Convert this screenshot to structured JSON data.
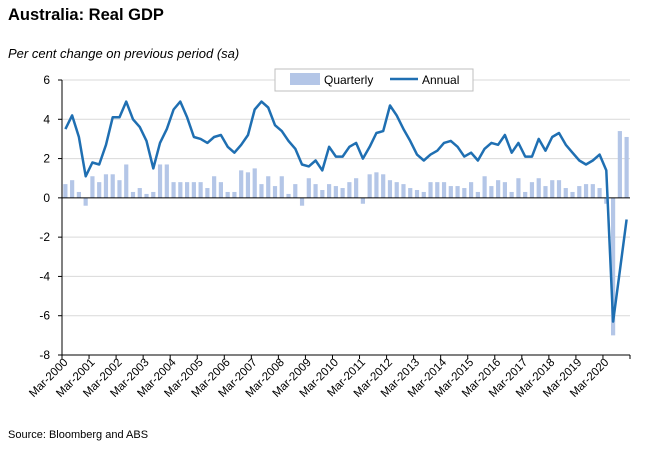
{
  "title": "Australia: Real GDP",
  "subtitle": "Per cent change on previous period (sa)",
  "source": "Source: Bloomberg and ABS",
  "colors": {
    "quarterly": "#b4c6e7",
    "annual": "#1f6fb2",
    "grid": "#d9d9d9",
    "axis": "#000000"
  },
  "chart_data": {
    "type": "bar",
    "title": "Australia: Real GDP",
    "ylabel": "Per cent change on previous period (sa)",
    "xlabel": "",
    "ylim": [
      -8,
      6
    ],
    "yticks": [
      6,
      4,
      2,
      0,
      -2,
      -4,
      -6,
      -8
    ],
    "grid": "horizontal",
    "legend_position": "top",
    "x_start": "Mar-2000",
    "x_frequency": "quarterly",
    "x_tick_labels": [
      "Mar-2000",
      "Mar-2001",
      "Mar-2002",
      "Mar-2003",
      "Mar-2004",
      "Mar-2005",
      "Mar-2006",
      "Mar-2007",
      "Mar-2008",
      "Mar-2009",
      "Mar-2010",
      "Mar-2011",
      "Mar-2012",
      "Mar-2013",
      "Mar-2014",
      "Mar-2015",
      "Mar-2016",
      "Mar-2017",
      "Mar-2018",
      "Mar-2019",
      "Mar-2020"
    ],
    "series": [
      {
        "name": "Quarterly",
        "type": "bar",
        "values": [
          0.7,
          0.9,
          0.3,
          -0.4,
          1.1,
          0.8,
          1.2,
          1.2,
          0.9,
          1.7,
          0.3,
          0.5,
          0.2,
          0.3,
          1.7,
          1.7,
          0.8,
          0.8,
          0.8,
          0.8,
          0.8,
          0.5,
          1.1,
          0.8,
          0.3,
          0.3,
          1.4,
          1.3,
          1.5,
          0.7,
          1.1,
          0.6,
          1.1,
          0.2,
          0.7,
          -0.4,
          1.0,
          0.7,
          0.4,
          0.7,
          0.6,
          0.5,
          0.8,
          1.0,
          -0.3,
          1.2,
          1.3,
          1.2,
          0.9,
          0.8,
          0.7,
          0.5,
          0.4,
          0.3,
          0.8,
          0.8,
          0.8,
          0.6,
          0.6,
          0.5,
          0.8,
          0.3,
          1.1,
          0.6,
          0.9,
          0.8,
          0.3,
          1.0,
          0.3,
          0.8,
          1.0,
          0.6,
          0.9,
          0.9,
          0.5,
          0.3,
          0.6,
          0.7,
          0.7,
          0.5,
          -0.3,
          -7.0,
          3.4,
          3.1
        ]
      },
      {
        "name": "Annual",
        "type": "line",
        "values": [
          3.5,
          4.2,
          3.1,
          1.1,
          1.8,
          1.7,
          2.7,
          4.1,
          4.1,
          4.9,
          4.0,
          3.6,
          2.9,
          1.5,
          2.8,
          3.5,
          4.5,
          4.9,
          4.1,
          3.1,
          3.0,
          2.8,
          3.1,
          3.2,
          2.6,
          2.3,
          2.7,
          3.2,
          4.5,
          4.9,
          4.6,
          3.7,
          3.4,
          2.9,
          2.5,
          1.7,
          1.6,
          1.9,
          1.4,
          2.6,
          2.1,
          2.1,
          2.6,
          2.8,
          2.0,
          2.6,
          3.3,
          3.4,
          4.7,
          4.2,
          3.5,
          2.9,
          2.2,
          1.9,
          2.2,
          2.4,
          2.8,
          2.9,
          2.6,
          2.1,
          2.3,
          1.9,
          2.5,
          2.8,
          2.7,
          3.2,
          2.3,
          2.8,
          2.1,
          2.1,
          3.0,
          2.4,
          3.1,
          3.3,
          2.7,
          2.3,
          1.9,
          1.7,
          1.9,
          2.2,
          1.4,
          -6.3,
          -3.7,
          -1.1
        ]
      }
    ]
  }
}
